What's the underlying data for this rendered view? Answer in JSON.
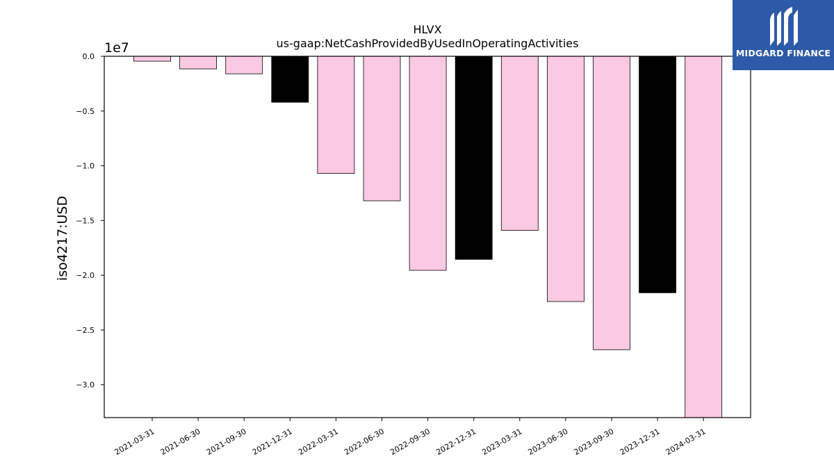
{
  "chart_data": {
    "type": "bar",
    "title": "HLVX",
    "subtitle": "us-gaap:NetCashProvidedByUsedInOperatingActivities",
    "xlabel": "",
    "ylabel": "iso4217:USD",
    "offset_label": "1e7",
    "ylim": [
      -3.3,
      0.0
    ],
    "y_scale_note": "values in units of 1e7",
    "yticks": [
      "0.0",
      "-0.5",
      "-1.0",
      "-1.5",
      "-2.0",
      "-2.5",
      "-3.0"
    ],
    "ytick_values": [
      0.0,
      -0.5,
      -1.0,
      -1.5,
      -2.0,
      -2.5,
      -3.0
    ],
    "categories": [
      "2021-03-31",
      "2021-06-30",
      "2021-09-30",
      "2021-12-31",
      "2022-03-31",
      "2022-06-30",
      "2022-09-30",
      "2022-12-31",
      "2023-03-31",
      "2023-06-30",
      "2023-09-30",
      "2023-12-31",
      "2024-03-31"
    ],
    "values": [
      -0.045,
      -0.115,
      -0.16,
      -0.42,
      -1.07,
      -1.32,
      -1.955,
      -1.855,
      -1.59,
      -2.24,
      -2.68,
      -2.16,
      -3.3
    ],
    "bar_colors": [
      "#fbc9e3",
      "#fbc9e3",
      "#fbc9e3",
      "#000000",
      "#fbc9e3",
      "#fbc9e3",
      "#fbc9e3",
      "#000000",
      "#fbc9e3",
      "#fbc9e3",
      "#fbc9e3",
      "#000000",
      "#fbc9e3"
    ],
    "grid": false,
    "legend": "none"
  },
  "logo": {
    "text": "MIDGARD FINANCE",
    "background": "#2d5aa8"
  }
}
